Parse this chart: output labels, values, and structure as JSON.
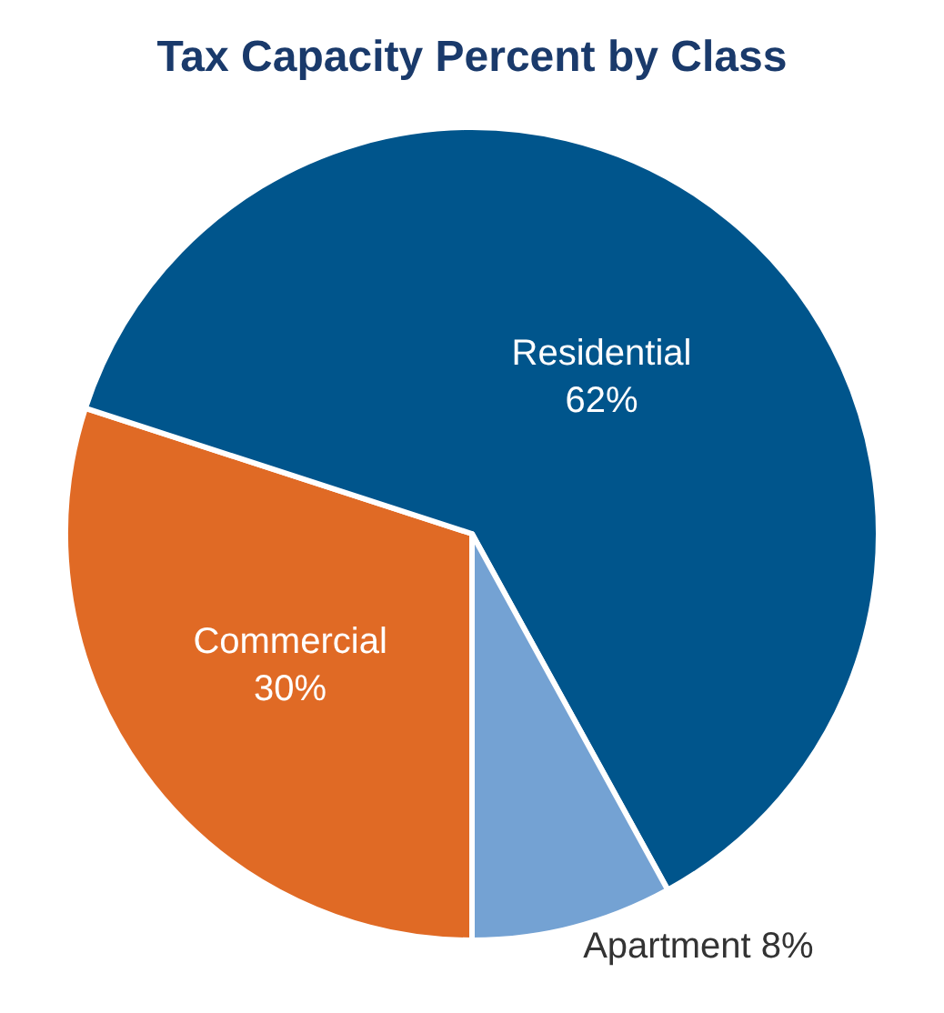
{
  "chart_data": {
    "type": "pie",
    "title": "Tax Capacity Percent by Class",
    "categories": [
      "Commercial",
      "Residential",
      "Apartment"
    ],
    "values": [
      30,
      62,
      8
    ],
    "value_labels": [
      "30%",
      "62%",
      "8%"
    ],
    "colors": [
      "#e06a25",
      "#00558c",
      "#74a2d3"
    ],
    "legend": false
  }
}
